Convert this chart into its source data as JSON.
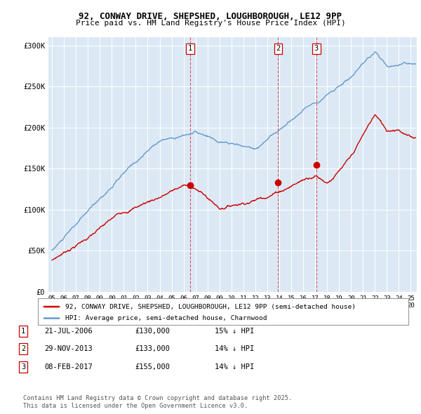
{
  "title1": "92, CONWAY DRIVE, SHEPSHED, LOUGHBOROUGH, LE12 9PP",
  "title2": "Price paid vs. HM Land Registry's House Price Index (HPI)",
  "red_label": "92, CONWAY DRIVE, SHEPSHED, LOUGHBOROUGH, LE12 9PP (semi-detached house)",
  "blue_label": "HPI: Average price, semi-detached house, Charnwood",
  "transactions": [
    {
      "num": 1,
      "date": "21-JUL-2006",
      "date_x": 2006.55,
      "price": 130000,
      "note": "15% ↓ HPI"
    },
    {
      "num": 2,
      "date": "29-NOV-2013",
      "date_x": 2013.91,
      "price": 133000,
      "note": "14% ↓ HPI"
    },
    {
      "num": 3,
      "date": "08-FEB-2017",
      "date_x": 2017.1,
      "price": 155000,
      "note": "14% ↓ HPI"
    }
  ],
  "footer": "Contains HM Land Registry data © Crown copyright and database right 2025.\nThis data is licensed under the Open Government Licence v3.0.",
  "bg_color": "#dce9f5",
  "red_color": "#cc0000",
  "blue_color": "#6699cc",
  "ylim": [
    0,
    310000
  ],
  "xlim_start": 1994.7,
  "xlim_end": 2025.5
}
